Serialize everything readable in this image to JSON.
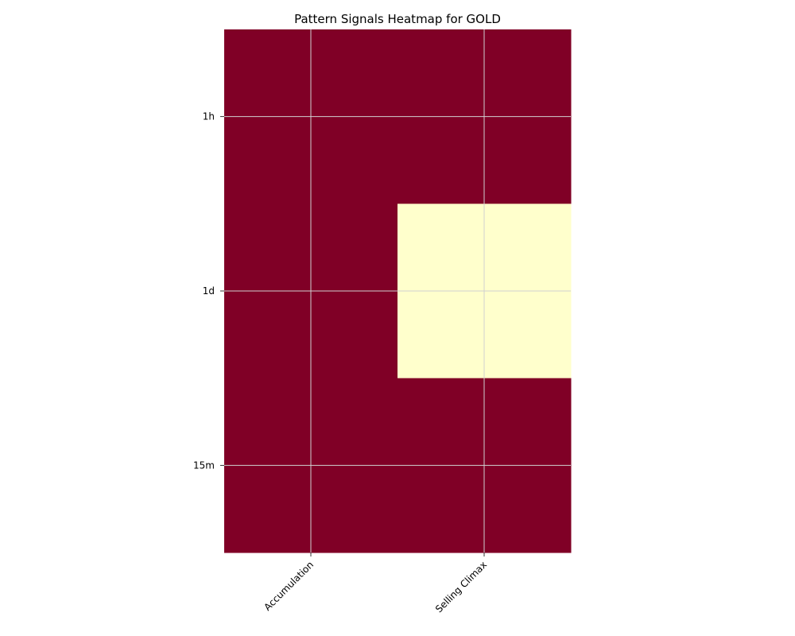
{
  "chart_data": {
    "type": "heatmap",
    "title": "Pattern Signals Heatmap for GOLD",
    "x_categories": [
      "Accumulation",
      "Selling Climax"
    ],
    "y_categories": [
      "1h",
      "1d",
      "15m"
    ],
    "values": [
      [
        1,
        1
      ],
      [
        1,
        0
      ],
      [
        1,
        1
      ]
    ],
    "colormap": {
      "high": "#800026",
      "low": "#ffffcc"
    },
    "grid": true,
    "xlabel": "",
    "ylabel": ""
  }
}
